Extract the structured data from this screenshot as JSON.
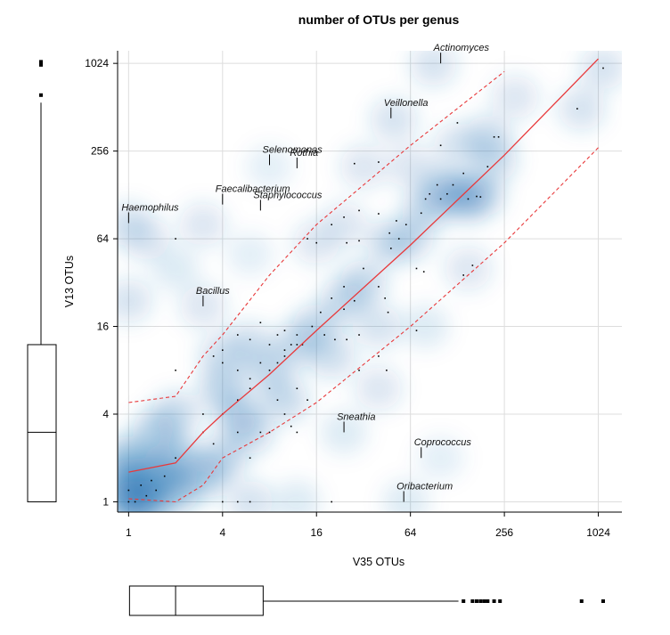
{
  "chart_data": {
    "type": "scatter",
    "title": "number of OTUs per genus",
    "xlabel": "V35 OTUs",
    "ylabel": "V13 OTUs",
    "x_scale": "log2",
    "y_scale": "log2",
    "x_ticks": [
      1,
      4,
      16,
      64,
      256,
      1024
    ],
    "y_ticks": [
      1,
      4,
      16,
      64,
      256,
      1024
    ],
    "xlim": [
      0.85,
      1450
    ],
    "ylim": [
      0.85,
      1250
    ],
    "grid": true,
    "density_shading": true,
    "colors": {
      "density": "#1f6fb2",
      "fit": "#e8393b",
      "points": "#000000",
      "grid": "#dddddd"
    },
    "annotations": [
      {
        "label": "Actinomyces",
        "x": 100,
        "y": 1024
      },
      {
        "label": "Veillonella",
        "x": 48,
        "y": 430
      },
      {
        "label": "Selenomonas",
        "x": 8,
        "y": 205
      },
      {
        "label": "Rothia",
        "x": 12,
        "y": 195
      },
      {
        "label": "Faecalibacterium",
        "x": 4,
        "y": 110
      },
      {
        "label": "Staphylococcus",
        "x": 7,
        "y": 100
      },
      {
        "label": "Haemophilus",
        "x": 1,
        "y": 82
      },
      {
        "label": "Bacillus",
        "x": 3,
        "y": 22
      },
      {
        "label": "Sneathia",
        "x": 24,
        "y": 3
      },
      {
        "label": "Coprococcus",
        "x": 75,
        "y": 2
      },
      {
        "label": "Oribacterium",
        "x": 58,
        "y": 1
      }
    ],
    "series": [
      {
        "type": "scatter",
        "points": [
          [
            1,
            1
          ],
          [
            1,
            1.2
          ],
          [
            1.1,
            1
          ],
          [
            1.3,
            1.1
          ],
          [
            1.2,
            1.3
          ],
          [
            4,
            1
          ],
          [
            5,
            1
          ],
          [
            6,
            1
          ],
          [
            20,
            1
          ],
          [
            5,
            3
          ],
          [
            7,
            3
          ],
          [
            8,
            3
          ],
          [
            12,
            3
          ],
          [
            6,
            2
          ],
          [
            4,
            4
          ],
          [
            5,
            5
          ],
          [
            6,
            6
          ],
          [
            8,
            8
          ],
          [
            9,
            9
          ],
          [
            10,
            10
          ],
          [
            7,
            9
          ],
          [
            3,
            4
          ],
          [
            2,
            8
          ],
          [
            2,
            64
          ],
          [
            3.5,
            10
          ],
          [
            4,
            11
          ],
          [
            5,
            8
          ],
          [
            6,
            7
          ],
          [
            8,
            6
          ],
          [
            9,
            5
          ],
          [
            10,
            4
          ],
          [
            11,
            3.3
          ],
          [
            12,
            6
          ],
          [
            14,
            5
          ],
          [
            10,
            11
          ],
          [
            11,
            12
          ],
          [
            12,
            14
          ],
          [
            13,
            12
          ],
          [
            18,
            14
          ],
          [
            21,
            13
          ],
          [
            25,
            13
          ],
          [
            30,
            14
          ],
          [
            15,
            16
          ],
          [
            17,
            20
          ],
          [
            20,
            25
          ],
          [
            24,
            30
          ],
          [
            28,
            24
          ],
          [
            32,
            40
          ],
          [
            40,
            30
          ],
          [
            44,
            25
          ],
          [
            46,
            20
          ],
          [
            48,
            55
          ],
          [
            54,
            64
          ],
          [
            60,
            80
          ],
          [
            75,
            96
          ],
          [
            80,
            120
          ],
          [
            85,
            130
          ],
          [
            95,
            150
          ],
          [
            100,
            120
          ],
          [
            110,
            130
          ],
          [
            120,
            150
          ],
          [
            140,
            180
          ],
          [
            150,
            120
          ],
          [
            170,
            125
          ],
          [
            180,
            124
          ],
          [
            200,
            200
          ],
          [
            220,
            320
          ],
          [
            235,
            320
          ],
          [
            16,
            60
          ],
          [
            20,
            80
          ],
          [
            24,
            90
          ],
          [
            30,
            100
          ],
          [
            40,
            95
          ],
          [
            47,
            70
          ],
          [
            52,
            85
          ],
          [
            70,
            40
          ],
          [
            78,
            38
          ],
          [
            140,
            36
          ],
          [
            160,
            42
          ],
          [
            8,
            12
          ],
          [
            9,
            14
          ],
          [
            10,
            15
          ],
          [
            12,
            12
          ],
          [
            30,
            8
          ],
          [
            40,
            10
          ],
          [
            45,
            8
          ],
          [
            70,
            15
          ],
          [
            4,
            9
          ],
          [
            5,
            14
          ],
          [
            6,
            13
          ],
          [
            7,
            17
          ],
          [
            1.4,
            1.4
          ],
          [
            1.5,
            1.2
          ],
          [
            1.7,
            1.5
          ],
          [
            2,
            2
          ],
          [
            3,
            3
          ],
          [
            3.5,
            2.5
          ],
          [
            14,
            64
          ],
          [
            100,
            280
          ],
          [
            25,
            60
          ],
          [
            30,
            62
          ],
          [
            28,
            210
          ],
          [
            40,
            215
          ],
          [
            24,
            21
          ],
          [
            128,
            400
          ],
          [
            750,
            500
          ],
          [
            1100,
            950
          ]
        ]
      },
      {
        "type": "line",
        "name": "fit",
        "points": [
          [
            1,
            1.6
          ],
          [
            2,
            1.85
          ],
          [
            3,
            3
          ],
          [
            4,
            4
          ],
          [
            8,
            7.5
          ],
          [
            16,
            15
          ],
          [
            64,
            58
          ],
          [
            256,
            240
          ],
          [
            1024,
            1100
          ]
        ]
      },
      {
        "type": "line",
        "name": "upper",
        "dashed": true,
        "points": [
          [
            1,
            4.8
          ],
          [
            2,
            5.3
          ],
          [
            3,
            10
          ],
          [
            4,
            14
          ],
          [
            8,
            36
          ],
          [
            16,
            80
          ],
          [
            64,
            280
          ],
          [
            256,
            900
          ]
        ]
      },
      {
        "type": "line",
        "name": "lower",
        "dashed": true,
        "points": [
          [
            1,
            1.05
          ],
          [
            2,
            1
          ],
          [
            3,
            1.3
          ],
          [
            4,
            2
          ],
          [
            8,
            3
          ],
          [
            16,
            4.8
          ],
          [
            64,
            16
          ],
          [
            256,
            60
          ],
          [
            1024,
            270
          ]
        ]
      }
    ],
    "marginal_boxplots": {
      "x": {
        "min": 1,
        "q1": 1,
        "median": 2,
        "q3": 7,
        "upper_whisker": 130,
        "outliers": [
          140,
          160,
          170,
          180,
          190,
          200,
          220,
          240,
          800,
          1100
        ]
      },
      "y": {
        "min": 1,
        "q1": 1,
        "median": 3,
        "q3": 12,
        "upper_whisker": 550,
        "outliers": [
          620,
          1000,
          1050
        ]
      }
    },
    "density_blobs": [
      [
        1,
        1,
        1.0
      ],
      [
        1.3,
        1,
        0.9
      ],
      [
        1,
        1.4,
        0.9
      ],
      [
        1.5,
        1.5,
        0.8
      ],
      [
        2,
        1.2,
        0.7
      ],
      [
        1,
        2,
        0.7
      ],
      [
        2,
        2,
        0.65
      ],
      [
        3,
        1.5,
        0.6
      ],
      [
        1.5,
        3,
        0.55
      ],
      [
        4,
        2,
        0.5
      ],
      [
        2,
        4,
        0.45
      ],
      [
        5,
        4,
        0.5
      ],
      [
        4,
        6,
        0.5
      ],
      [
        6,
        3,
        0.45
      ],
      [
        8,
        8,
        0.45
      ],
      [
        10,
        5,
        0.45
      ],
      [
        12,
        12,
        0.45
      ],
      [
        6,
        12,
        0.4
      ],
      [
        16,
        16,
        0.45
      ],
      [
        20,
        10,
        0.4
      ],
      [
        24,
        24,
        0.45
      ],
      [
        32,
        32,
        0.45
      ],
      [
        40,
        16,
        0.35
      ],
      [
        48,
        60,
        0.45
      ],
      [
        64,
        64,
        0.35
      ],
      [
        80,
        100,
        0.45
      ],
      [
        100,
        140,
        0.5
      ],
      [
        128,
        130,
        0.45
      ],
      [
        150,
        120,
        0.5
      ],
      [
        180,
        130,
        0.45
      ],
      [
        220,
        220,
        0.4
      ],
      [
        200,
        320,
        0.4
      ],
      [
        128,
        280,
        0.35
      ],
      [
        64,
        200,
        0.3
      ],
      [
        32,
        200,
        0.3
      ],
      [
        16,
        60,
        0.3
      ],
      [
        24,
        80,
        0.3
      ],
      [
        8,
        200,
        0.2
      ],
      [
        3,
        80,
        0.3
      ],
      [
        1,
        80,
        0.35
      ],
      [
        1.3,
        64,
        0.3
      ],
      [
        1,
        24,
        0.35
      ],
      [
        3,
        22,
        0.3
      ],
      [
        4,
        10,
        0.4
      ],
      [
        6,
        50,
        0.2
      ],
      [
        90,
        1000,
        0.35
      ],
      [
        50,
        420,
        0.35
      ],
      [
        300,
        600,
        0.3
      ],
      [
        800,
        500,
        0.35
      ],
      [
        1100,
        950,
        0.35
      ],
      [
        150,
        40,
        0.3
      ],
      [
        80,
        16,
        0.25
      ],
      [
        100,
        2,
        0.2
      ],
      [
        60,
        1,
        0.25
      ],
      [
        24,
        3,
        0.25
      ],
      [
        6,
        1,
        0.35
      ],
      [
        12,
        1,
        0.25
      ],
      [
        2,
        40,
        0.25
      ],
      [
        40,
        6,
        0.3
      ]
    ]
  }
}
